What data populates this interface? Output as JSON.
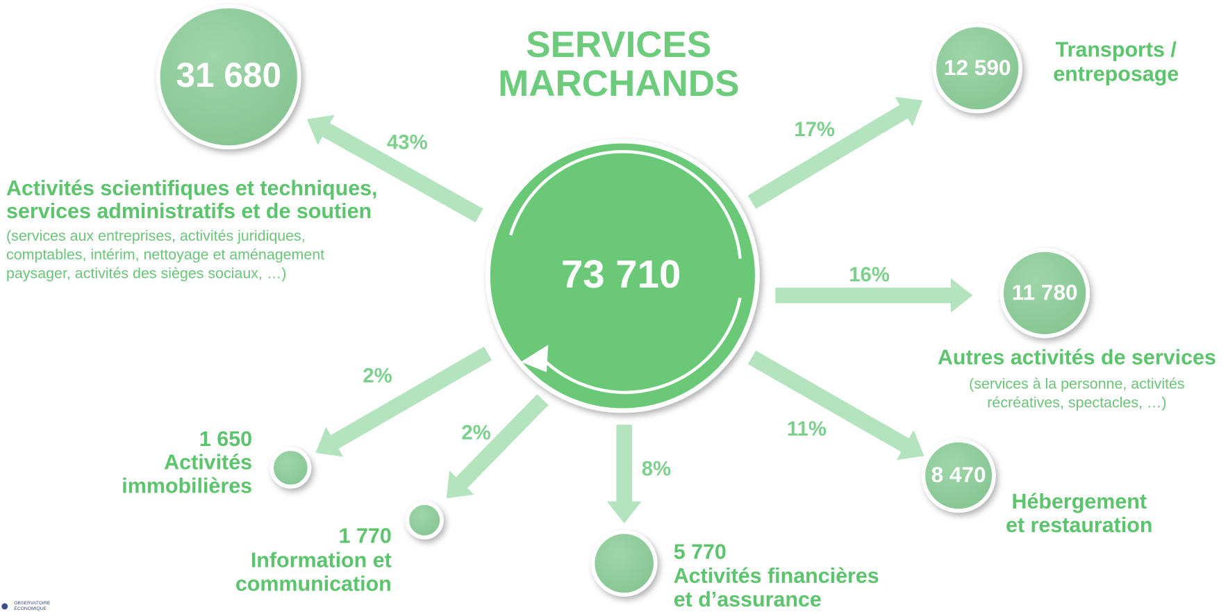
{
  "title_lines": [
    "SERVICES",
    "MARCHANDS"
  ],
  "center_value": "73 710",
  "branches": [
    {
      "value": "31 680",
      "percent": "43%",
      "label": [
        "Activités scientifiques et techniques,",
        "services administratifs et de soutien"
      ],
      "note": [
        "(services aux entreprises, activités juridiques,",
        "comptables, intérim, nettoyage et aménagement",
        "paysager, activités des sièges sociaux, …)"
      ]
    },
    {
      "value": "12 590",
      "percent": "17%",
      "label": [
        "Transports /",
        "entreposage"
      ]
    },
    {
      "value": "11 780",
      "percent": "16%",
      "label": [
        "Autres activités de services"
      ],
      "note": [
        "(services à la personne, activités",
        "récréatives, spectacles, …)"
      ]
    },
    {
      "value": "8 470",
      "percent": "11%",
      "label": [
        "Hébergement",
        "et restauration"
      ]
    },
    {
      "value": "5 770",
      "percent": "8%",
      "label": [
        "Activités financières",
        "et d’assurance"
      ]
    },
    {
      "value": "1 770",
      "percent": "2%",
      "label": [
        "Information et",
        "communication"
      ]
    },
    {
      "value": "1 650",
      "percent": "2%",
      "label": [
        "Activités",
        "immobilières"
      ]
    }
  ],
  "logo_lines": [
    "OBSERVATOIRE",
    "ÉCONOMIQUE"
  ]
}
